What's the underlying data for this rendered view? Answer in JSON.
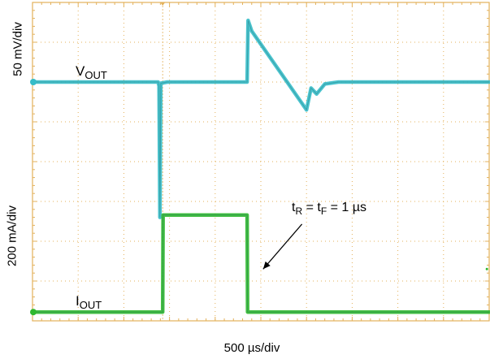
{
  "chart_data": {
    "type": "line",
    "x_division_label": "500 µs/div",
    "divisions": {
      "x": 10,
      "y": 8
    },
    "grid": true,
    "grid_color": "#e3b15a",
    "channels": [
      {
        "name": "VOUT",
        "name_main": "V",
        "name_sub": "OUT",
        "scale_label": "50 mV/div",
        "color": "#36bcc8",
        "baseline_div": 6.0,
        "points_div": [
          [
            0.0,
            6.0
          ],
          [
            2.75,
            6.0
          ],
          [
            2.77,
            5.9
          ],
          [
            2.79,
            2.6
          ],
          [
            2.81,
            5.97
          ],
          [
            2.95,
            6.0
          ],
          [
            4.7,
            6.0
          ],
          [
            4.72,
            7.55
          ],
          [
            4.8,
            7.28
          ],
          [
            6.0,
            5.3
          ],
          [
            6.1,
            5.85
          ],
          [
            6.22,
            5.7
          ],
          [
            6.4,
            5.95
          ],
          [
            6.7,
            6.0
          ],
          [
            10.0,
            6.0
          ]
        ]
      },
      {
        "name": "IOUT",
        "name_main": "I",
        "name_sub": "OUT",
        "scale_label": "200 mA/div",
        "color": "#2fb82f",
        "baseline_div": 0.22,
        "points_div": [
          [
            0.0,
            0.22
          ],
          [
            2.85,
            0.22
          ],
          [
            2.86,
            2.66
          ],
          [
            4.7,
            2.66
          ],
          [
            4.71,
            0.22
          ],
          [
            10.0,
            0.22
          ]
        ]
      }
    ],
    "annotations": [
      {
        "text_parts": [
          "t",
          "R",
          " = t",
          "F",
          " = 1 µs"
        ],
        "arrow_from_div": [
          5.9,
          2.43
        ],
        "arrow_to_div": [
          5.05,
          1.3
        ]
      }
    ],
    "vertical_marker_div": 2.85
  }
}
